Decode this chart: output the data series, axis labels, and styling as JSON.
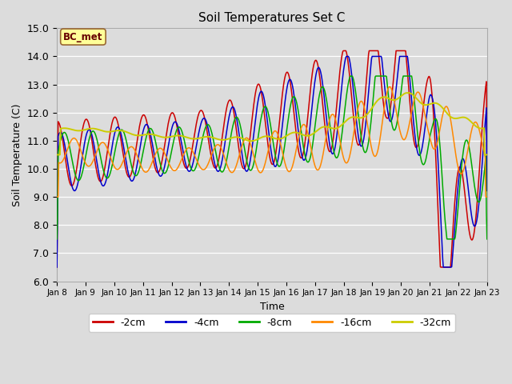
{
  "title": "Soil Temperatures Set C",
  "xlabel": "Time",
  "ylabel": "Soil Temperature (C)",
  "ylim": [
    6.0,
    15.0
  ],
  "yticks": [
    6.0,
    7.0,
    8.0,
    9.0,
    10.0,
    11.0,
    12.0,
    13.0,
    14.0,
    15.0
  ],
  "xtick_labels": [
    "Jan 8",
    "Jan 9",
    "Jan 10",
    "Jan 11",
    "Jan 12",
    "Jan 13",
    "Jan 14",
    "Jan 15",
    "Jan 16",
    "Jan 17",
    "Jan 18",
    "Jan 19",
    "Jan 20",
    "Jan 21",
    "Jan 22",
    "Jan 23"
  ],
  "colors": {
    "-2cm": "#cc0000",
    "-4cm": "#0000cc",
    "-8cm": "#00aa00",
    "-16cm": "#ff8800",
    "-32cm": "#cccc00"
  },
  "legend_labels": [
    "-2cm",
    "-4cm",
    "-8cm",
    "-16cm",
    "-32cm"
  ],
  "annotation_text": "BC_met",
  "annotation_bg": "#ffff99",
  "annotation_border": "#996633",
  "fig_bg": "#dcdcdc",
  "plot_bg": "#dcdcdc"
}
